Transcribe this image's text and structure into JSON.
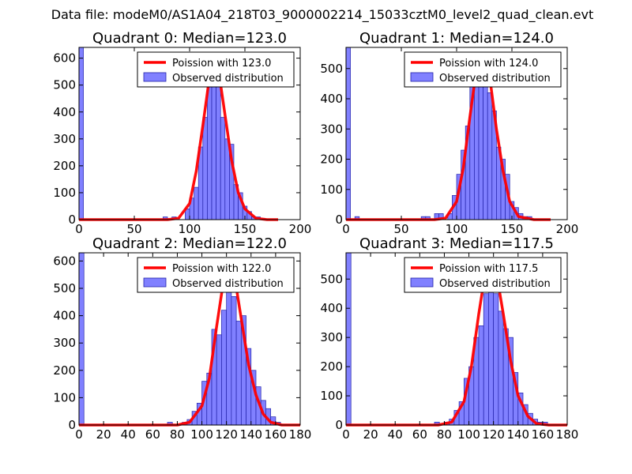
{
  "suptitle": "Data file: modeM0/AS1A04_218T03_9000002214_15033cztM0_level2_quad_clean.evt",
  "colors": {
    "bar_fill": "#8080ff",
    "bar_edge": "#2222aa",
    "curve": "#ff0000",
    "axes": "#000000"
  },
  "chart_data": [
    {
      "type": "bar",
      "title": "Quadrant 0: Median=123.0",
      "xlim": [
        0,
        200
      ],
      "ylim": [
        0,
        640
      ],
      "xticks": [
        "0",
        "50",
        "100",
        "150",
        "200"
      ],
      "yticks": [
        "0",
        "100",
        "200",
        "300",
        "400",
        "500",
        "600"
      ],
      "bin_width": 4,
      "bins": [
        [
          0,
          640
        ],
        [
          76,
          10
        ],
        [
          84,
          10
        ],
        [
          96,
          40
        ],
        [
          100,
          80
        ],
        [
          104,
          120
        ],
        [
          108,
          270
        ],
        [
          112,
          380
        ],
        [
          116,
          590
        ],
        [
          120,
          620
        ],
        [
          124,
          540
        ],
        [
          128,
          380
        ],
        [
          132,
          300
        ],
        [
          136,
          280
        ],
        [
          140,
          130
        ],
        [
          144,
          100
        ],
        [
          148,
          50
        ],
        [
          152,
          30
        ],
        [
          156,
          10
        ],
        [
          160,
          10
        ],
        [
          164,
          5
        ]
      ],
      "curve": [
        [
          0,
          0
        ],
        [
          80,
          0
        ],
        [
          90,
          5
        ],
        [
          100,
          60
        ],
        [
          106,
          180
        ],
        [
          112,
          350
        ],
        [
          118,
          530
        ],
        [
          122,
          600
        ],
        [
          126,
          560
        ],
        [
          132,
          390
        ],
        [
          138,
          220
        ],
        [
          144,
          100
        ],
        [
          150,
          40
        ],
        [
          160,
          5
        ],
        [
          170,
          0
        ],
        [
          180,
          0
        ]
      ],
      "legend": {
        "curve_label": "Poission with 123.0",
        "bar_label": "Observed distribution",
        "position": "top-right"
      }
    },
    {
      "type": "bar",
      "title": "Quadrant 1: Median=124.0",
      "xlim": [
        0,
        200
      ],
      "ylim": [
        0,
        570
      ],
      "xticks": [
        "0",
        "50",
        "100",
        "150",
        "200"
      ],
      "yticks": [
        "0",
        "100",
        "200",
        "300",
        "400",
        "500"
      ],
      "bin_width": 4,
      "bins": [
        [
          0,
          570
        ],
        [
          8,
          10
        ],
        [
          68,
          10
        ],
        [
          72,
          10
        ],
        [
          80,
          20
        ],
        [
          84,
          20
        ],
        [
          92,
          20
        ],
        [
          96,
          80
        ],
        [
          100,
          150
        ],
        [
          104,
          230
        ],
        [
          108,
          310
        ],
        [
          112,
          440
        ],
        [
          116,
          450
        ],
        [
          120,
          500
        ],
        [
          124,
          550
        ],
        [
          128,
          420
        ],
        [
          132,
          360
        ],
        [
          136,
          240
        ],
        [
          140,
          200
        ],
        [
          144,
          150
        ],
        [
          148,
          60
        ],
        [
          152,
          40
        ],
        [
          156,
          20
        ],
        [
          160,
          10
        ],
        [
          164,
          10
        ]
      ],
      "curve": [
        [
          0,
          0
        ],
        [
          80,
          0
        ],
        [
          90,
          5
        ],
        [
          100,
          60
        ],
        [
          106,
          170
        ],
        [
          112,
          340
        ],
        [
          118,
          500
        ],
        [
          124,
          550
        ],
        [
          130,
          470
        ],
        [
          136,
          300
        ],
        [
          142,
          160
        ],
        [
          148,
          60
        ],
        [
          156,
          10
        ],
        [
          170,
          0
        ],
        [
          185,
          0
        ]
      ],
      "legend": {
        "curve_label": "Poission with 124.0",
        "bar_label": "Observed distribution",
        "position": "top-right"
      }
    },
    {
      "type": "bar",
      "title": "Quadrant 2: Median=122.0",
      "xlim": [
        0,
        180
      ],
      "ylim": [
        0,
        630
      ],
      "xticks": [
        "0",
        "20",
        "40",
        "60",
        "80",
        "100",
        "120",
        "140",
        "160",
        "180"
      ],
      "yticks": [
        "0",
        "100",
        "200",
        "300",
        "400",
        "500",
        "600"
      ],
      "bin_width": 4,
      "bins": [
        [
          0,
          630
        ],
        [
          72,
          10
        ],
        [
          84,
          10
        ],
        [
          88,
          20
        ],
        [
          92,
          50
        ],
        [
          96,
          80
        ],
        [
          100,
          160
        ],
        [
          104,
          190
        ],
        [
          108,
          350
        ],
        [
          112,
          330
        ],
        [
          116,
          420
        ],
        [
          120,
          520
        ],
        [
          124,
          470
        ],
        [
          128,
          380
        ],
        [
          132,
          400
        ],
        [
          136,
          280
        ],
        [
          140,
          200
        ],
        [
          144,
          140
        ],
        [
          148,
          90
        ],
        [
          152,
          60
        ],
        [
          156,
          30
        ],
        [
          160,
          10
        ]
      ],
      "curve": [
        [
          0,
          0
        ],
        [
          80,
          0
        ],
        [
          90,
          10
        ],
        [
          100,
          70
        ],
        [
          106,
          170
        ],
        [
          112,
          360
        ],
        [
          118,
          540
        ],
        [
          122,
          600
        ],
        [
          126,
          560
        ],
        [
          132,
          390
        ],
        [
          138,
          220
        ],
        [
          144,
          110
        ],
        [
          150,
          40
        ],
        [
          156,
          10
        ],
        [
          165,
          0
        ],
        [
          180,
          0
        ]
      ],
      "legend": {
        "curve_label": "Poission with 122.0",
        "bar_label": "Observed distribution",
        "position": "top-right"
      }
    },
    {
      "type": "bar",
      "title": "Quadrant 3: Median=117.5",
      "xlim": [
        0,
        180
      ],
      "ylim": [
        0,
        590
      ],
      "xticks": [
        "0",
        "20",
        "40",
        "60",
        "80",
        "100",
        "120",
        "140",
        "160",
        "180"
      ],
      "yticks": [
        "0",
        "100",
        "200",
        "300",
        "400",
        "500"
      ],
      "bin_width": 4,
      "bins": [
        [
          0,
          590
        ],
        [
          72,
          10
        ],
        [
          80,
          10
        ],
        [
          84,
          20
        ],
        [
          88,
          50
        ],
        [
          92,
          80
        ],
        [
          96,
          160
        ],
        [
          100,
          200
        ],
        [
          104,
          300
        ],
        [
          108,
          340
        ],
        [
          112,
          450
        ],
        [
          116,
          490
        ],
        [
          120,
          450
        ],
        [
          124,
          390
        ],
        [
          128,
          330
        ],
        [
          132,
          300
        ],
        [
          136,
          180
        ],
        [
          140,
          110
        ],
        [
          144,
          70
        ],
        [
          148,
          40
        ],
        [
          152,
          20
        ],
        [
          156,
          10
        ],
        [
          160,
          10
        ]
      ],
      "curve": [
        [
          0,
          0
        ],
        [
          75,
          0
        ],
        [
          86,
          10
        ],
        [
          96,
          80
        ],
        [
          102,
          200
        ],
        [
          108,
          380
        ],
        [
          114,
          540
        ],
        [
          118,
          570
        ],
        [
          122,
          530
        ],
        [
          128,
          380
        ],
        [
          134,
          220
        ],
        [
          140,
          100
        ],
        [
          148,
          30
        ],
        [
          155,
          5
        ],
        [
          165,
          0
        ],
        [
          180,
          0
        ]
      ],
      "legend": {
        "curve_label": "Poission with 117.5",
        "bar_label": "Observed distribution",
        "position": "top-right"
      }
    }
  ]
}
